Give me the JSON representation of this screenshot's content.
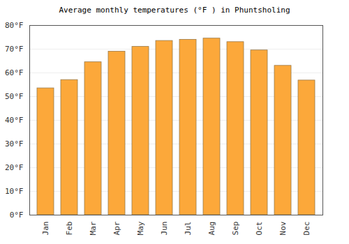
{
  "chart_data": {
    "type": "bar",
    "title": "Average monthly temperatures (°F ) in Phuntsholing",
    "categories": [
      "Jan",
      "Feb",
      "Mar",
      "Apr",
      "May",
      "Jun",
      "Jul",
      "Aug",
      "Sep",
      "Oct",
      "Nov",
      "Dec"
    ],
    "values": [
      53.5,
      57,
      64.5,
      69,
      71,
      73.5,
      74,
      74.5,
      73,
      69.5,
      63,
      56.8
    ],
    "color": "#fca83a",
    "ylim": [
      0,
      80
    ],
    "yticks": [
      {
        "value": 0,
        "label": "0°F"
      },
      {
        "value": 10,
        "label": "10°F"
      },
      {
        "value": 20,
        "label": "20°F"
      },
      {
        "value": 30,
        "label": "30°F"
      },
      {
        "value": 40,
        "label": "40°F"
      },
      {
        "value": 50,
        "label": "50°F"
      },
      {
        "value": 60,
        "label": "60°F"
      },
      {
        "value": 70,
        "label": "70°F"
      },
      {
        "value": 80,
        "label": "80°F"
      }
    ],
    "grid": true
  }
}
